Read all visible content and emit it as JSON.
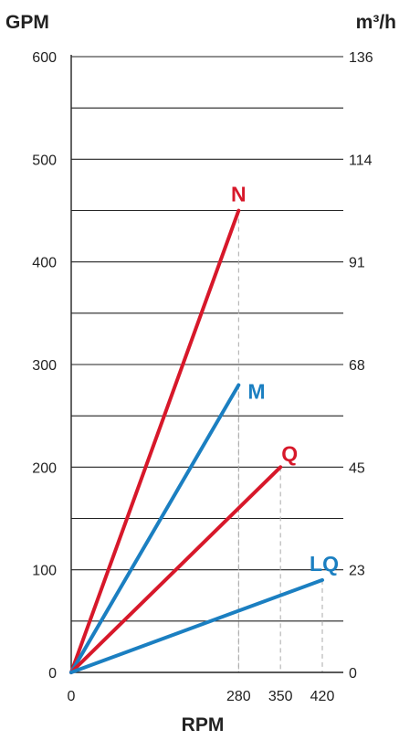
{
  "chart_data": {
    "type": "line",
    "left_axis_unit": "GPM",
    "right_axis_unit": "m³/h",
    "xlabel": "RPM",
    "x_ticks": [
      0,
      280,
      350,
      420
    ],
    "y_ticks_left": [
      0,
      100,
      200,
      300,
      400,
      500,
      600
    ],
    "y_ticks_right": [
      {
        "gpm": 0,
        "label": "0"
      },
      {
        "gpm": 100,
        "label": "23"
      },
      {
        "gpm": 200,
        "label": "45"
      },
      {
        "gpm": 300,
        "label": "68"
      },
      {
        "gpm": 400,
        "label": "91"
      },
      {
        "gpm": 500,
        "label": "114"
      },
      {
        "gpm": 600,
        "label": "136"
      }
    ],
    "ylim": [
      0,
      600
    ],
    "xlim": [
      0,
      420
    ],
    "grid_step": 50,
    "series": [
      {
        "name": "N",
        "color": "#d7182a",
        "points": [
          [
            0,
            0
          ],
          [
            280,
            450
          ]
        ]
      },
      {
        "name": "M",
        "color": "#1b7fc1",
        "points": [
          [
            0,
            0
          ],
          [
            280,
            280
          ]
        ]
      },
      {
        "name": "Q",
        "color": "#d7182a",
        "points": [
          [
            0,
            0
          ],
          [
            350,
            200
          ]
        ]
      },
      {
        "name": "LQ",
        "color": "#1b7fc1",
        "points": [
          [
            0,
            0
          ],
          [
            420,
            90
          ]
        ]
      }
    ]
  }
}
